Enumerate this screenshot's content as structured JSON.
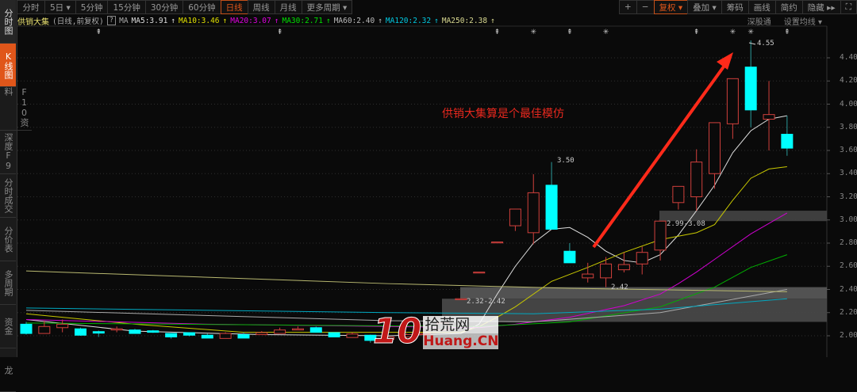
{
  "sidebar": {
    "items": [
      {
        "label": "分时图"
      },
      {
        "label": "K线图",
        "active": true
      },
      {
        "label": "F10资料"
      },
      {
        "label": "深度F9"
      },
      {
        "label": "分时成交"
      },
      {
        "label": "分价表"
      },
      {
        "label": "多周期"
      },
      {
        "label": "资金"
      },
      {
        "label": "龙"
      }
    ]
  },
  "toolbar": {
    "periods": [
      {
        "label": "分时"
      },
      {
        "label": "5日 ▾"
      },
      {
        "label": "5分钟"
      },
      {
        "label": "15分钟"
      },
      {
        "label": "30分钟"
      },
      {
        "label": "60分钟"
      },
      {
        "label": "日线",
        "active": true
      },
      {
        "label": "周线"
      },
      {
        "label": "月线"
      },
      {
        "label": "更多周期 ▾"
      }
    ],
    "right": [
      {
        "label": "+"
      },
      {
        "label": "−"
      },
      {
        "label": "复权 ▾",
        "active": true
      },
      {
        "label": "叠加 ▾"
      },
      {
        "label": "筹码"
      },
      {
        "label": "画线"
      },
      {
        "label": "简约"
      },
      {
        "label": "隐藏 ▸▸"
      },
      {
        "label": "⛶",
        "icon": "fullscreen-icon"
      }
    ]
  },
  "info": {
    "stock": "供销大集",
    "mode": "(日线,前复权)",
    "help": "?",
    "ma_label": "MA",
    "mas": [
      {
        "label": "MA5:3.91",
        "arrow": "↑",
        "color": "#dddddd"
      },
      {
        "label": "MA10:3.46",
        "arrow": "↑",
        "color": "#e0e000"
      },
      {
        "label": "MA20:3.07",
        "arrow": "↑",
        "color": "#e000e0"
      },
      {
        "label": "MA30:2.71",
        "arrow": "↑",
        "color": "#00e000"
      },
      {
        "label": "MA60:2.40",
        "arrow": "↑",
        "color": "#bbbbbb"
      },
      {
        "label": "MA120:2.32",
        "arrow": "↑",
        "color": "#00c8e0"
      },
      {
        "label": "MA250:2.38",
        "arrow": "↑",
        "color": "#d8d890"
      }
    ],
    "right": [
      "深股通",
      "设置均线 ▾"
    ]
  },
  "annotation": "供销大集算是个最佳模仿",
  "notes": {
    "high": "4.55",
    "local_high": "3.50",
    "low": "2.42",
    "band_upper": "2.99-3.08",
    "band_lower": "2.32-2.42"
  },
  "watermark": {
    "logo": "10",
    "cn": "拾荒网",
    "en": "Huang.CN"
  },
  "colors": {
    "up": "#d0403c",
    "down": "#00ffff",
    "active": "#e0561a",
    "arrow": "#ff2a1a"
  },
  "chart_data": {
    "type": "candlestick",
    "ylim": [
      2.0,
      4.4
    ],
    "yticks": [
      "4.40",
      "4.20",
      "4.00",
      "3.80",
      "3.60",
      "3.40",
      "3.20",
      "3.00",
      "2.80",
      "2.60",
      "2.40",
      "2.20",
      "2.00"
    ],
    "grid": true,
    "candles_ohlc": [
      [
        2.1,
        2.12,
        2.01,
        2.02
      ],
      [
        2.02,
        2.13,
        2.02,
        2.08
      ],
      [
        2.07,
        2.14,
        2.03,
        2.1
      ],
      [
        2.06,
        2.07,
        2.0,
        2.005
      ],
      [
        2.036,
        2.045,
        1.99,
        2.023
      ],
      [
        2.05,
        2.08,
        2.03,
        2.06
      ],
      [
        2.05,
        2.06,
        2.02,
        2.02
      ],
      [
        2.043,
        2.05,
        2.025,
        2.03
      ],
      [
        2.02,
        2.02,
        1.975,
        1.99
      ],
      [
        2.027,
        2.03,
        1.995,
        2.005
      ],
      [
        2.005,
        2.02,
        1.98,
        1.98
      ],
      [
        1.977,
        2.03,
        1.977,
        2.02
      ],
      [
        2.01,
        2.03,
        1.98,
        1.98
      ],
      [
        2.01,
        2.04,
        2.01,
        2.027
      ],
      [
        2.02,
        2.07,
        2.02,
        2.05
      ],
      [
        2.05,
        2.08,
        2.05,
        2.06
      ],
      [
        2.07,
        2.08,
        2.03,
        2.03
      ],
      [
        2.027,
        2.03,
        1.99,
        1.99
      ],
      [
        1.985,
        2.03,
        1.985,
        2.015
      ],
      [
        2.005,
        2.01,
        1.94,
        1.96
      ],
      [
        1.97,
        2.0,
        1.96,
        1.99
      ],
      [
        1.99,
        2.02,
        1.98,
        2.01
      ],
      [
        2.01,
        2.03,
        2.0,
        2.02
      ],
      [
        2.05,
        2.11,
        2.04,
        2.11
      ],
      [
        2.32,
        2.32,
        2.32,
        2.32
      ],
      [
        2.55,
        2.55,
        2.55,
        2.55
      ],
      [
        2.81,
        2.81,
        2.81,
        2.81
      ],
      [
        2.95,
        3.095,
        2.905,
        3.094
      ],
      [
        2.89,
        3.395,
        2.79,
        3.235
      ],
      [
        3.3,
        3.5,
        2.92,
        2.92
      ],
      [
        2.73,
        2.8,
        2.63,
        2.63
      ],
      [
        2.5,
        2.63,
        2.46,
        2.533
      ],
      [
        2.5,
        2.68,
        2.42,
        2.62
      ],
      [
        2.57,
        2.72,
        2.547,
        2.615
      ],
      [
        2.62,
        2.77,
        2.53,
        2.72
      ],
      [
        2.74,
        2.99,
        2.65,
        2.99
      ],
      [
        3.15,
        3.29,
        3.09,
        3.29
      ],
      [
        3.2,
        3.61,
        3.08,
        3.5
      ],
      [
        3.4,
        3.84,
        3.27,
        3.84
      ],
      [
        3.83,
        4.22,
        3.7,
        4.22
      ],
      [
        4.32,
        4.55,
        3.8,
        3.95
      ],
      [
        3.87,
        4.2,
        3.6,
        3.91
      ],
      [
        3.74,
        3.9,
        3.554,
        3.62
      ]
    ],
    "ma_lines": [
      {
        "name": "MA5",
        "color": "#dddddd",
        "points": [
          [
            0,
            2.14
          ],
          [
            6,
            2.04
          ],
          [
            13,
            2.01
          ],
          [
            20,
            2.0
          ],
          [
            24,
            2.02
          ],
          [
            25,
            2.1
          ],
          [
            26,
            2.36
          ],
          [
            27,
            2.6
          ],
          [
            28,
            2.8
          ],
          [
            29,
            2.92
          ],
          [
            30,
            2.935
          ],
          [
            31,
            2.85
          ],
          [
            32,
            2.73
          ],
          [
            33,
            2.65
          ],
          [
            34,
            2.63
          ],
          [
            35,
            2.7
          ],
          [
            36,
            2.87
          ],
          [
            37,
            3.08
          ],
          [
            38,
            3.3
          ],
          [
            39,
            3.58
          ],
          [
            40,
            3.77
          ],
          [
            41,
            3.87
          ],
          [
            42,
            3.9
          ]
        ]
      },
      {
        "name": "MA10",
        "color": "#c8c800",
        "points": [
          [
            0,
            2.19
          ],
          [
            6,
            2.1
          ],
          [
            12,
            2.03
          ],
          [
            24,
            2.03
          ],
          [
            25,
            2.08
          ],
          [
            26,
            2.16
          ],
          [
            27,
            2.25
          ],
          [
            29,
            2.47
          ],
          [
            31,
            2.59
          ],
          [
            33,
            2.72
          ],
          [
            35,
            2.83
          ],
          [
            37,
            2.89
          ],
          [
            38,
            2.96
          ],
          [
            39,
            3.17
          ],
          [
            40,
            3.36
          ],
          [
            41,
            3.44
          ],
          [
            42,
            3.46
          ]
        ]
      },
      {
        "name": "MA20",
        "color": "#d000d0",
        "points": [
          [
            0,
            2.14
          ],
          [
            10,
            2.1
          ],
          [
            20,
            2.08
          ],
          [
            25,
            2.07
          ],
          [
            27,
            2.1
          ],
          [
            30,
            2.16
          ],
          [
            33,
            2.26
          ],
          [
            35,
            2.36
          ],
          [
            36,
            2.45
          ],
          [
            37,
            2.55
          ],
          [
            38,
            2.66
          ],
          [
            40,
            2.88
          ],
          [
            42,
            3.06
          ]
        ]
      },
      {
        "name": "MA30",
        "color": "#00b000",
        "points": [
          [
            0,
            2.11
          ],
          [
            25,
            2.08
          ],
          [
            30,
            2.12
          ],
          [
            35,
            2.25
          ],
          [
            38,
            2.42
          ],
          [
            40,
            2.59
          ],
          [
            42,
            2.7
          ]
        ]
      },
      {
        "name": "MA60",
        "color": "#aaaaaa",
        "points": [
          [
            0,
            2.22
          ],
          [
            20,
            2.13
          ],
          [
            28,
            2.12
          ],
          [
            35,
            2.2
          ],
          [
            42,
            2.4
          ]
        ]
      },
      {
        "name": "MA120",
        "color": "#00a8c0",
        "points": [
          [
            0,
            2.24
          ],
          [
            20,
            2.2
          ],
          [
            28,
            2.19
          ],
          [
            35,
            2.23
          ],
          [
            42,
            2.32
          ]
        ]
      },
      {
        "name": "MA250",
        "color": "#b8b870",
        "points": [
          [
            0,
            2.56
          ],
          [
            20,
            2.45
          ],
          [
            30,
            2.41
          ],
          [
            42,
            2.38
          ]
        ]
      }
    ],
    "chip_bands": [
      [
        2.99,
        3.08
      ],
      [
        2.32,
        2.42
      ],
      [
        2.12,
        2.32
      ]
    ],
    "event_markers": [
      {
        "i": 4,
        "s": "⇞"
      },
      {
        "i": 14,
        "s": "⇞"
      },
      {
        "i": 26,
        "s": "⇞"
      },
      {
        "i": 28,
        "s": "✳"
      },
      {
        "i": 30,
        "s": "⇞"
      },
      {
        "i": 32,
        "s": "✳"
      },
      {
        "i": 37,
        "s": "⇞"
      },
      {
        "i": 39,
        "s": "✳"
      },
      {
        "i": 40,
        "s": "✳"
      },
      {
        "i": 42,
        "s": "⇞"
      }
    ]
  }
}
